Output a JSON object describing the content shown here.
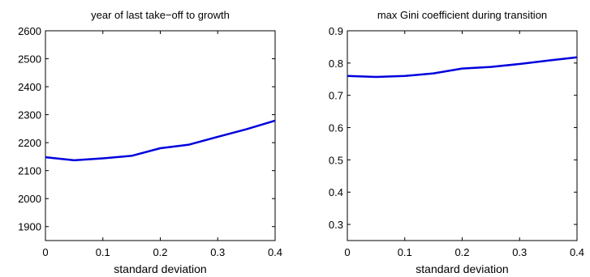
{
  "chart_data": [
    {
      "type": "line",
      "title": "year of last take−off to growth",
      "xlabel": "standard deviation",
      "ylabel": "",
      "xlim": [
        0,
        0.4
      ],
      "ylim": [
        1850,
        2600
      ],
      "xticks": [
        "0",
        "0.1",
        "0.2",
        "0.3",
        "0.4"
      ],
      "yticks": [
        "1900",
        "2000",
        "2100",
        "2200",
        "2300",
        "2400",
        "2500",
        "2600"
      ],
      "grid": false,
      "series": [
        {
          "color": "#0000dd",
          "x": [
            0,
            0.05,
            0.1,
            0.15,
            0.2,
            0.25,
            0.3,
            0.35,
            0.4
          ],
          "y": [
            2148,
            2137,
            2144,
            2153,
            2180,
            2193,
            2221,
            2248,
            2279
          ]
        }
      ]
    },
    {
      "type": "line",
      "title": "max Gini coefficient during transition",
      "xlabel": "standard deviation",
      "ylabel": "",
      "xlim": [
        0,
        0.4
      ],
      "ylim": [
        0.25,
        0.9
      ],
      "xticks": [
        "0",
        "0.1",
        "0.2",
        "0.3",
        "0.4"
      ],
      "yticks": [
        "0.3",
        "0.4",
        "0.5",
        "0.6",
        "0.7",
        "0.8",
        "0.9"
      ],
      "grid": false,
      "series": [
        {
          "color": "#0000dd",
          "x": [
            0,
            0.05,
            0.1,
            0.15,
            0.2,
            0.25,
            0.3,
            0.35,
            0.4
          ],
          "y": [
            0.76,
            0.757,
            0.76,
            0.768,
            0.783,
            0.788,
            0.797,
            0.808,
            0.818
          ]
        }
      ]
    }
  ]
}
